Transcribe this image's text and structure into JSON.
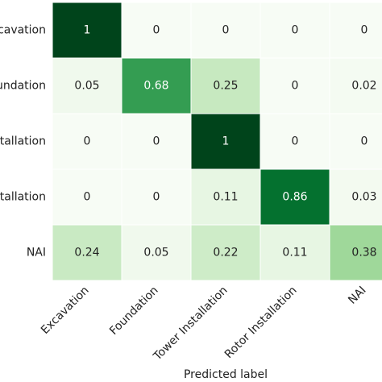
{
  "chart_data": {
    "type": "heatmap",
    "x_label": "Predicted label",
    "x_categories": [
      "Excavation",
      "Foundation",
      "Tower Installation",
      "Rotor Installation",
      "NAI"
    ],
    "y_categories": [
      "Excavation",
      "Foundation",
      "Tower Installation",
      "Rotor Installation",
      "NAI"
    ],
    "values": [
      [
        1,
        0,
        0,
        0,
        0
      ],
      [
        0.05,
        0.68,
        0.25,
        0,
        0.02
      ],
      [
        0,
        0,
        1,
        0,
        0
      ],
      [
        0,
        0,
        0.11,
        0.86,
        0.03
      ],
      [
        0.24,
        0.05,
        0.22,
        0.11,
        0.38
      ]
    ],
    "colormap": [
      "#f7fcf5",
      "#e5f5e0",
      "#c7e9c0",
      "#a1d99b",
      "#74c476",
      "#41ab5d",
      "#238b45",
      "#006d2c",
      "#00441b"
    ],
    "vlim": [
      0,
      1
    ]
  }
}
